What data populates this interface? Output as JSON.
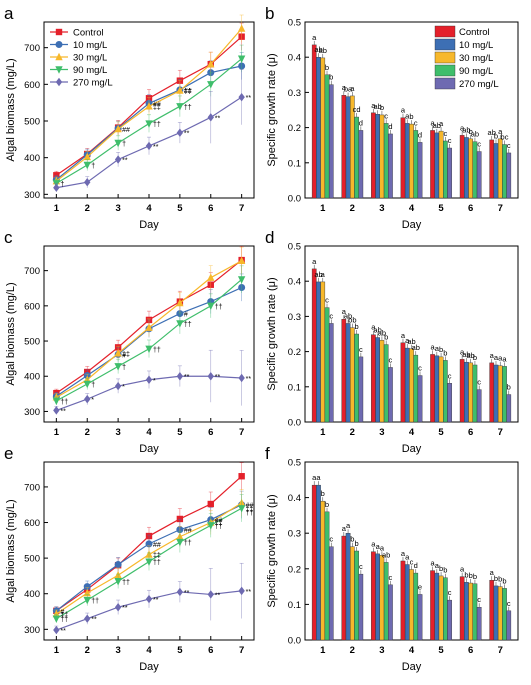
{
  "figure": {
    "panel_letters": [
      "a",
      "b",
      "c",
      "d",
      "e",
      "f"
    ]
  },
  "colors": {
    "Control": "#e4202a",
    "10 mg/L": "#3d6fb4",
    "30 mg/L": "#f7b82b",
    "90 mg/L": "#3fbe6b",
    "270 mg/L": "#6e6ab1",
    "bar_edge": "#333333",
    "axis": "#000000"
  },
  "chart_data": [
    {
      "panel": "a",
      "type": "line",
      "xlabel": "Day",
      "ylabel": "Algal biomass (mg/L)",
      "x": [
        1,
        2,
        3,
        4,
        5,
        6,
        7
      ],
      "xlim": [
        0.6,
        7.4
      ],
      "ylim": [
        290,
        770
      ],
      "yticks": [
        300,
        400,
        500,
        600,
        700
      ],
      "legend": "top-left",
      "series": [
        {
          "name": "Control",
          "marker": "square",
          "values": [
            352,
            410,
            482,
            562,
            610,
            655,
            730
          ]
        },
        {
          "name": "10 mg/L",
          "marker": "circle",
          "values": [
            340,
            408,
            480,
            548,
            585,
            632,
            650
          ]
        },
        {
          "name": "30 mg/L",
          "marker": "triangle-up",
          "values": [
            336,
            402,
            478,
            540,
            583,
            655,
            752
          ]
        },
        {
          "name": "90 mg/L",
          "marker": "triangle-down",
          "values": [
            330,
            380,
            440,
            493,
            540,
            600,
            670
          ]
        },
        {
          "name": "270 mg/L",
          "marker": "diamond",
          "values": [
            318,
            333,
            395,
            432,
            468,
            510,
            565
          ]
        }
      ],
      "annotations": [
        {
          "x": 1,
          "v": 330,
          "t": "†"
        },
        {
          "x": 2,
          "v": 380,
          "t": "†"
        },
        {
          "x": 3,
          "v": 440,
          "t": "†"
        },
        {
          "x": 3,
          "v": 478,
          "t": "##"
        },
        {
          "x": 3,
          "v": 395,
          "t": "**"
        },
        {
          "x": 4,
          "v": 548,
          "t": "##"
        },
        {
          "x": 4,
          "v": 540,
          "t": "‡‡"
        },
        {
          "x": 4,
          "v": 493,
          "t": "††"
        },
        {
          "x": 4,
          "v": 432,
          "t": "**"
        },
        {
          "x": 5,
          "v": 585,
          "t": "##"
        },
        {
          "x": 5,
          "v": 583,
          "t": "‡‡"
        },
        {
          "x": 5,
          "v": 540,
          "t": "††"
        },
        {
          "x": 5,
          "v": 468,
          "t": "**"
        },
        {
          "x": 6,
          "v": 510,
          "t": "**"
        },
        {
          "x": 7,
          "v": 565,
          "t": "**"
        }
      ]
    },
    {
      "panel": "b",
      "type": "bar",
      "xlabel": "Day",
      "ylabel": "Specific growth rate (μ)",
      "categories": [
        "1",
        "2",
        "3",
        "4",
        "5",
        "6",
        "7"
      ],
      "ylim": [
        0,
        0.5
      ],
      "yticks": [
        0.0,
        0.1,
        0.2,
        0.3,
        0.4,
        0.5
      ],
      "legend": "top-right",
      "series": [
        {
          "name": "Control",
          "values": [
            0.435,
            0.292,
            0.242,
            0.228,
            0.192,
            0.178,
            0.165
          ]
        },
        {
          "name": "10 mg/L",
          "values": [
            0.4,
            0.288,
            0.238,
            0.212,
            0.185,
            0.172,
            0.155
          ]
        },
        {
          "name": "30 mg/L",
          "values": [
            0.398,
            0.29,
            0.236,
            0.21,
            0.19,
            0.168,
            0.168
          ]
        },
        {
          "name": "90 mg/L",
          "values": [
            0.35,
            0.23,
            0.212,
            0.192,
            0.162,
            0.16,
            0.152
          ]
        },
        {
          "name": "270 mg/L",
          "values": [
            0.322,
            0.192,
            0.182,
            0.158,
            0.142,
            0.132,
            0.128
          ]
        }
      ],
      "letters": [
        [
          "a",
          "ab",
          "ab",
          "b",
          "b"
        ],
        [
          "a",
          "ba",
          "a",
          "cd",
          "d"
        ],
        [
          "a",
          "ab",
          "b",
          "c",
          "d"
        ],
        [
          "a",
          "a",
          "b",
          "c",
          "d"
        ],
        [
          "a",
          "ab",
          "a",
          "c",
          "c"
        ],
        [
          "a",
          "ab",
          "b",
          "ab",
          "c"
        ],
        [
          "ab",
          "b",
          "a",
          "bc",
          "c"
        ]
      ]
    },
    {
      "panel": "c",
      "type": "line",
      "xlabel": "Day",
      "ylabel": "Algal biomass (mg/L)",
      "x": [
        1,
        2,
        3,
        4,
        5,
        6,
        7
      ],
      "xlim": [
        0.6,
        7.4
      ],
      "ylim": [
        270,
        770
      ],
      "yticks": [
        300,
        400,
        500,
        600,
        700
      ],
      "series": [
        {
          "name": "Control",
          "marker": "square",
          "values": [
            352,
            412,
            482,
            560,
            612,
            660,
            730
          ]
        },
        {
          "name": "10 mg/L",
          "marker": "circle",
          "values": [
            343,
            402,
            462,
            535,
            578,
            612,
            652
          ]
        },
        {
          "name": "30 mg/L",
          "marker": "triangle-up",
          "values": [
            340,
            390,
            465,
            538,
            608,
            680,
            728
          ]
        },
        {
          "name": "90 mg/L",
          "marker": "triangle-down",
          "values": [
            330,
            378,
            428,
            478,
            550,
            600,
            675
          ]
        },
        {
          "name": "270 mg/L",
          "marker": "diamond",
          "values": [
            303,
            335,
            372,
            390,
            400,
            400,
            395
          ]
        }
      ],
      "annotations": [
        {
          "x": 1,
          "v": 330,
          "t": "††"
        },
        {
          "x": 1,
          "v": 303,
          "t": "**"
        },
        {
          "x": 2,
          "v": 378,
          "t": "†"
        },
        {
          "x": 2,
          "v": 335,
          "t": "*"
        },
        {
          "x": 3,
          "v": 462,
          "t": "#"
        },
        {
          "x": 3,
          "v": 465,
          "t": "‡‡"
        },
        {
          "x": 3,
          "v": 428,
          "t": "†"
        },
        {
          "x": 3,
          "v": 372,
          "t": "*"
        },
        {
          "x": 4,
          "v": 478,
          "t": "††"
        },
        {
          "x": 4,
          "v": 390,
          "t": "*"
        },
        {
          "x": 5,
          "v": 578,
          "t": "#"
        },
        {
          "x": 5,
          "v": 550,
          "t": "††"
        },
        {
          "x": 5,
          "v": 400,
          "t": "**"
        },
        {
          "x": 6,
          "v": 600,
          "t": "††"
        },
        {
          "x": 6,
          "v": 400,
          "t": "**"
        },
        {
          "x": 7,
          "v": 395,
          "t": "**"
        }
      ]
    },
    {
      "panel": "d",
      "type": "bar",
      "xlabel": "Day",
      "ylabel": "Specific growth rate (μ)",
      "categories": [
        "1",
        "2",
        "3",
        "4",
        "5",
        "6",
        "7"
      ],
      "ylim": [
        0,
        0.5
      ],
      "yticks": [
        0.0,
        0.1,
        0.2,
        0.3,
        0.4,
        0.5
      ],
      "series": [
        {
          "name": "Control",
          "values": [
            0.435,
            0.292,
            0.248,
            0.225,
            0.192,
            0.178,
            0.168
          ]
        },
        {
          "name": "10 mg/L",
          "values": [
            0.398,
            0.28,
            0.24,
            0.21,
            0.188,
            0.17,
            0.162
          ]
        },
        {
          "name": "30 mg/L",
          "values": [
            0.398,
            0.268,
            0.232,
            0.208,
            0.185,
            0.168,
            0.16
          ]
        },
        {
          "name": "90 mg/L",
          "values": [
            0.325,
            0.25,
            0.22,
            0.19,
            0.175,
            0.162,
            0.158
          ]
        },
        {
          "name": "270 mg/L",
          "values": [
            0.28,
            0.185,
            0.155,
            0.132,
            0.11,
            0.092,
            0.078
          ]
        }
      ],
      "letters": [
        [
          "a",
          "ab",
          "a",
          "c",
          "c"
        ],
        [
          "a",
          "ab",
          "bb",
          "b",
          "c"
        ],
        [
          "a",
          "ab",
          "ab",
          "b",
          "c"
        ],
        [
          "a",
          "a",
          "ab",
          "ab",
          "c"
        ],
        [
          "a",
          "a",
          "b",
          "b",
          "c"
        ],
        [
          "a",
          "ab",
          "ab",
          "b",
          "c"
        ],
        [
          "a",
          "a",
          "a",
          "a",
          "b"
        ]
      ]
    },
    {
      "panel": "e",
      "type": "line",
      "xlabel": "Day",
      "ylabel": "Algal biomass (mg/L)",
      "x": [
        1,
        2,
        3,
        4,
        5,
        6,
        7
      ],
      "xlim": [
        0.6,
        7.4
      ],
      "ylim": [
        270,
        770
      ],
      "yticks": [
        300,
        400,
        500,
        600,
        700
      ],
      "series": [
        {
          "name": "Control",
          "marker": "square",
          "values": [
            352,
            412,
            480,
            562,
            610,
            652,
            730
          ]
        },
        {
          "name": "10 mg/L",
          "marker": "circle",
          "values": [
            352,
            420,
            482,
            540,
            580,
            608,
            650
          ]
        },
        {
          "name": "30 mg/L",
          "marker": "triangle-up",
          "values": [
            343,
            402,
            452,
            510,
            560,
            600,
            655
          ]
        },
        {
          "name": "90 mg/L",
          "marker": "triangle-down",
          "values": [
            330,
            382,
            435,
            490,
            545,
            592,
            640
          ]
        },
        {
          "name": "270 mg/L",
          "marker": "diamond",
          "values": [
            298,
            330,
            362,
            385,
            405,
            398,
            408
          ]
        }
      ],
      "annotations": [
        {
          "x": 1,
          "v": 352,
          "t": "#"
        },
        {
          "x": 1,
          "v": 343,
          "t": "‡‡"
        },
        {
          "x": 1,
          "v": 330,
          "t": "††"
        },
        {
          "x": 1,
          "v": 298,
          "t": "**"
        },
        {
          "x": 2,
          "v": 382,
          "t": "††"
        },
        {
          "x": 2,
          "v": 330,
          "t": "**"
        },
        {
          "x": 3,
          "v": 435,
          "t": "††"
        },
        {
          "x": 3,
          "v": 362,
          "t": "**"
        },
        {
          "x": 4,
          "v": 540,
          "t": "##"
        },
        {
          "x": 4,
          "v": 510,
          "t": "‡‡"
        },
        {
          "x": 4,
          "v": 490,
          "t": "††"
        },
        {
          "x": 4,
          "v": 385,
          "t": "**"
        },
        {
          "x": 5,
          "v": 580,
          "t": "##"
        },
        {
          "x": 5,
          "v": 545,
          "t": "††"
        },
        {
          "x": 5,
          "v": 405,
          "t": "**"
        },
        {
          "x": 6,
          "v": 608,
          "t": "##"
        },
        {
          "x": 6,
          "v": 600,
          "t": "‡‡"
        },
        {
          "x": 6,
          "v": 592,
          "t": "††"
        },
        {
          "x": 6,
          "v": 398,
          "t": "**"
        },
        {
          "x": 7,
          "v": 650,
          "t": "##"
        },
        {
          "x": 7,
          "v": 640,
          "t": "‡‡"
        },
        {
          "x": 7,
          "v": 630,
          "t": "††"
        },
        {
          "x": 7,
          "v": 408,
          "t": "**"
        }
      ]
    },
    {
      "panel": "f",
      "type": "bar",
      "xlabel": "Day",
      "ylabel": "Specific growth rate (μ)",
      "categories": [
        "1",
        "2",
        "3",
        "4",
        "5",
        "6",
        "7"
      ],
      "ylim": [
        0,
        0.5
      ],
      "yticks": [
        0.0,
        0.1,
        0.2,
        0.3,
        0.4,
        0.5
      ],
      "series": [
        {
          "name": "Control",
          "values": [
            0.435,
            0.292,
            0.248,
            0.222,
            0.195,
            0.178,
            0.168
          ]
        },
        {
          "name": "10 mg/L",
          "values": [
            0.435,
            0.3,
            0.242,
            0.212,
            0.188,
            0.162,
            0.152
          ]
        },
        {
          "name": "30 mg/L",
          "values": [
            0.39,
            0.262,
            0.238,
            0.198,
            0.18,
            0.16,
            0.15
          ]
        },
        {
          "name": "90 mg/L",
          "values": [
            0.36,
            0.25,
            0.218,
            0.188,
            0.175,
            0.158,
            0.145
          ]
        },
        {
          "name": "270 mg/L",
          "values": [
            0.262,
            0.185,
            0.155,
            0.128,
            0.112,
            0.092,
            0.082
          ]
        }
      ],
      "letters": [
        [
          "a",
          "a",
          "b",
          "b",
          "c"
        ],
        [
          "a",
          "a",
          "b",
          "b",
          "c"
        ],
        [
          "a",
          "a",
          "a",
          "ab",
          "c"
        ],
        [
          "a",
          "a",
          "c",
          "d",
          "e"
        ],
        [
          "a",
          "a",
          "b",
          "b",
          "c"
        ],
        [
          "a",
          "b",
          "b",
          "b",
          "c"
        ],
        [
          "a",
          "b",
          "b",
          "b",
          "c"
        ]
      ]
    }
  ]
}
